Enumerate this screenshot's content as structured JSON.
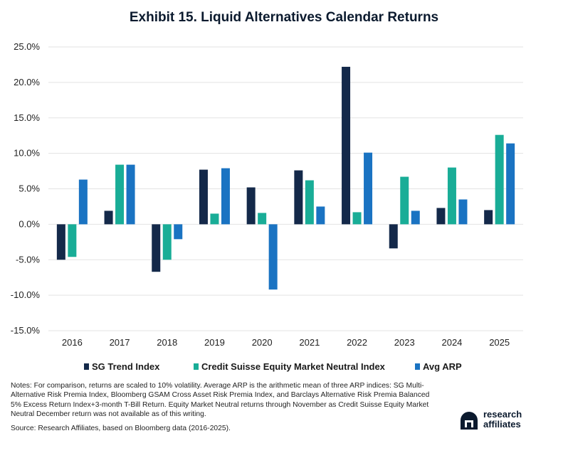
{
  "chart_data": {
    "type": "bar",
    "title": "Exhibit 15. Liquid Alternatives Calendar Returns",
    "categories": [
      "2016",
      "2017",
      "2018",
      "2019",
      "2020",
      "2021",
      "2022",
      "2023",
      "2024",
      "2025"
    ],
    "series": [
      {
        "name": "SG Trend Index",
        "color": "#14294a",
        "values": [
          -5.0,
          1.9,
          -6.7,
          7.7,
          5.2,
          7.6,
          22.2,
          -3.4,
          2.3,
          2.0
        ]
      },
      {
        "name": "Credit Suisse Equity Market Neutral Index",
        "color": "#19ad97",
        "values": [
          -4.6,
          8.4,
          -5.0,
          1.5,
          1.6,
          6.2,
          1.7,
          6.7,
          8.0,
          12.6
        ]
      },
      {
        "name": "Avg ARP",
        "color": "#1a73c2",
        "values": [
          6.3,
          8.4,
          -2.1,
          7.9,
          -9.2,
          2.5,
          10.1,
          1.9,
          3.5,
          11.4
        ]
      }
    ],
    "ylim": [
      -15,
      25
    ],
    "yticks": [
      "-15.0%",
      "-10.0%",
      "-5.0%",
      "0.0%",
      "5.0%",
      "10.0%",
      "15.0%",
      "20.0%",
      "25.0%"
    ],
    "ytick_values": [
      -15,
      -10,
      -5,
      0,
      5,
      10,
      15,
      20,
      25
    ],
    "grid": true,
    "legend_position": "bottom"
  },
  "notes": "Notes: For comparison, returns are scaled to 10% volatility. Average ARP is the arithmetic mean of three ARP indices: SG Multi-Alternative Risk Premia Index, Bloomberg GSAM Cross Asset Risk Premia Index, and Barclays Alternative Risk Premia Balanced 5% Excess Return Index+3-month T-Bill Return. Equity Market Neutral returns through November as Credit Suisse Equity Market Neutral December return was not available as of this writing.",
  "source": "Source: Research Affiliates, based on Bloomberg data (2016-2025).",
  "logo": {
    "line1": "research",
    "line2": "affiliates",
    "icon": "research-affiliates-logo-icon"
  }
}
